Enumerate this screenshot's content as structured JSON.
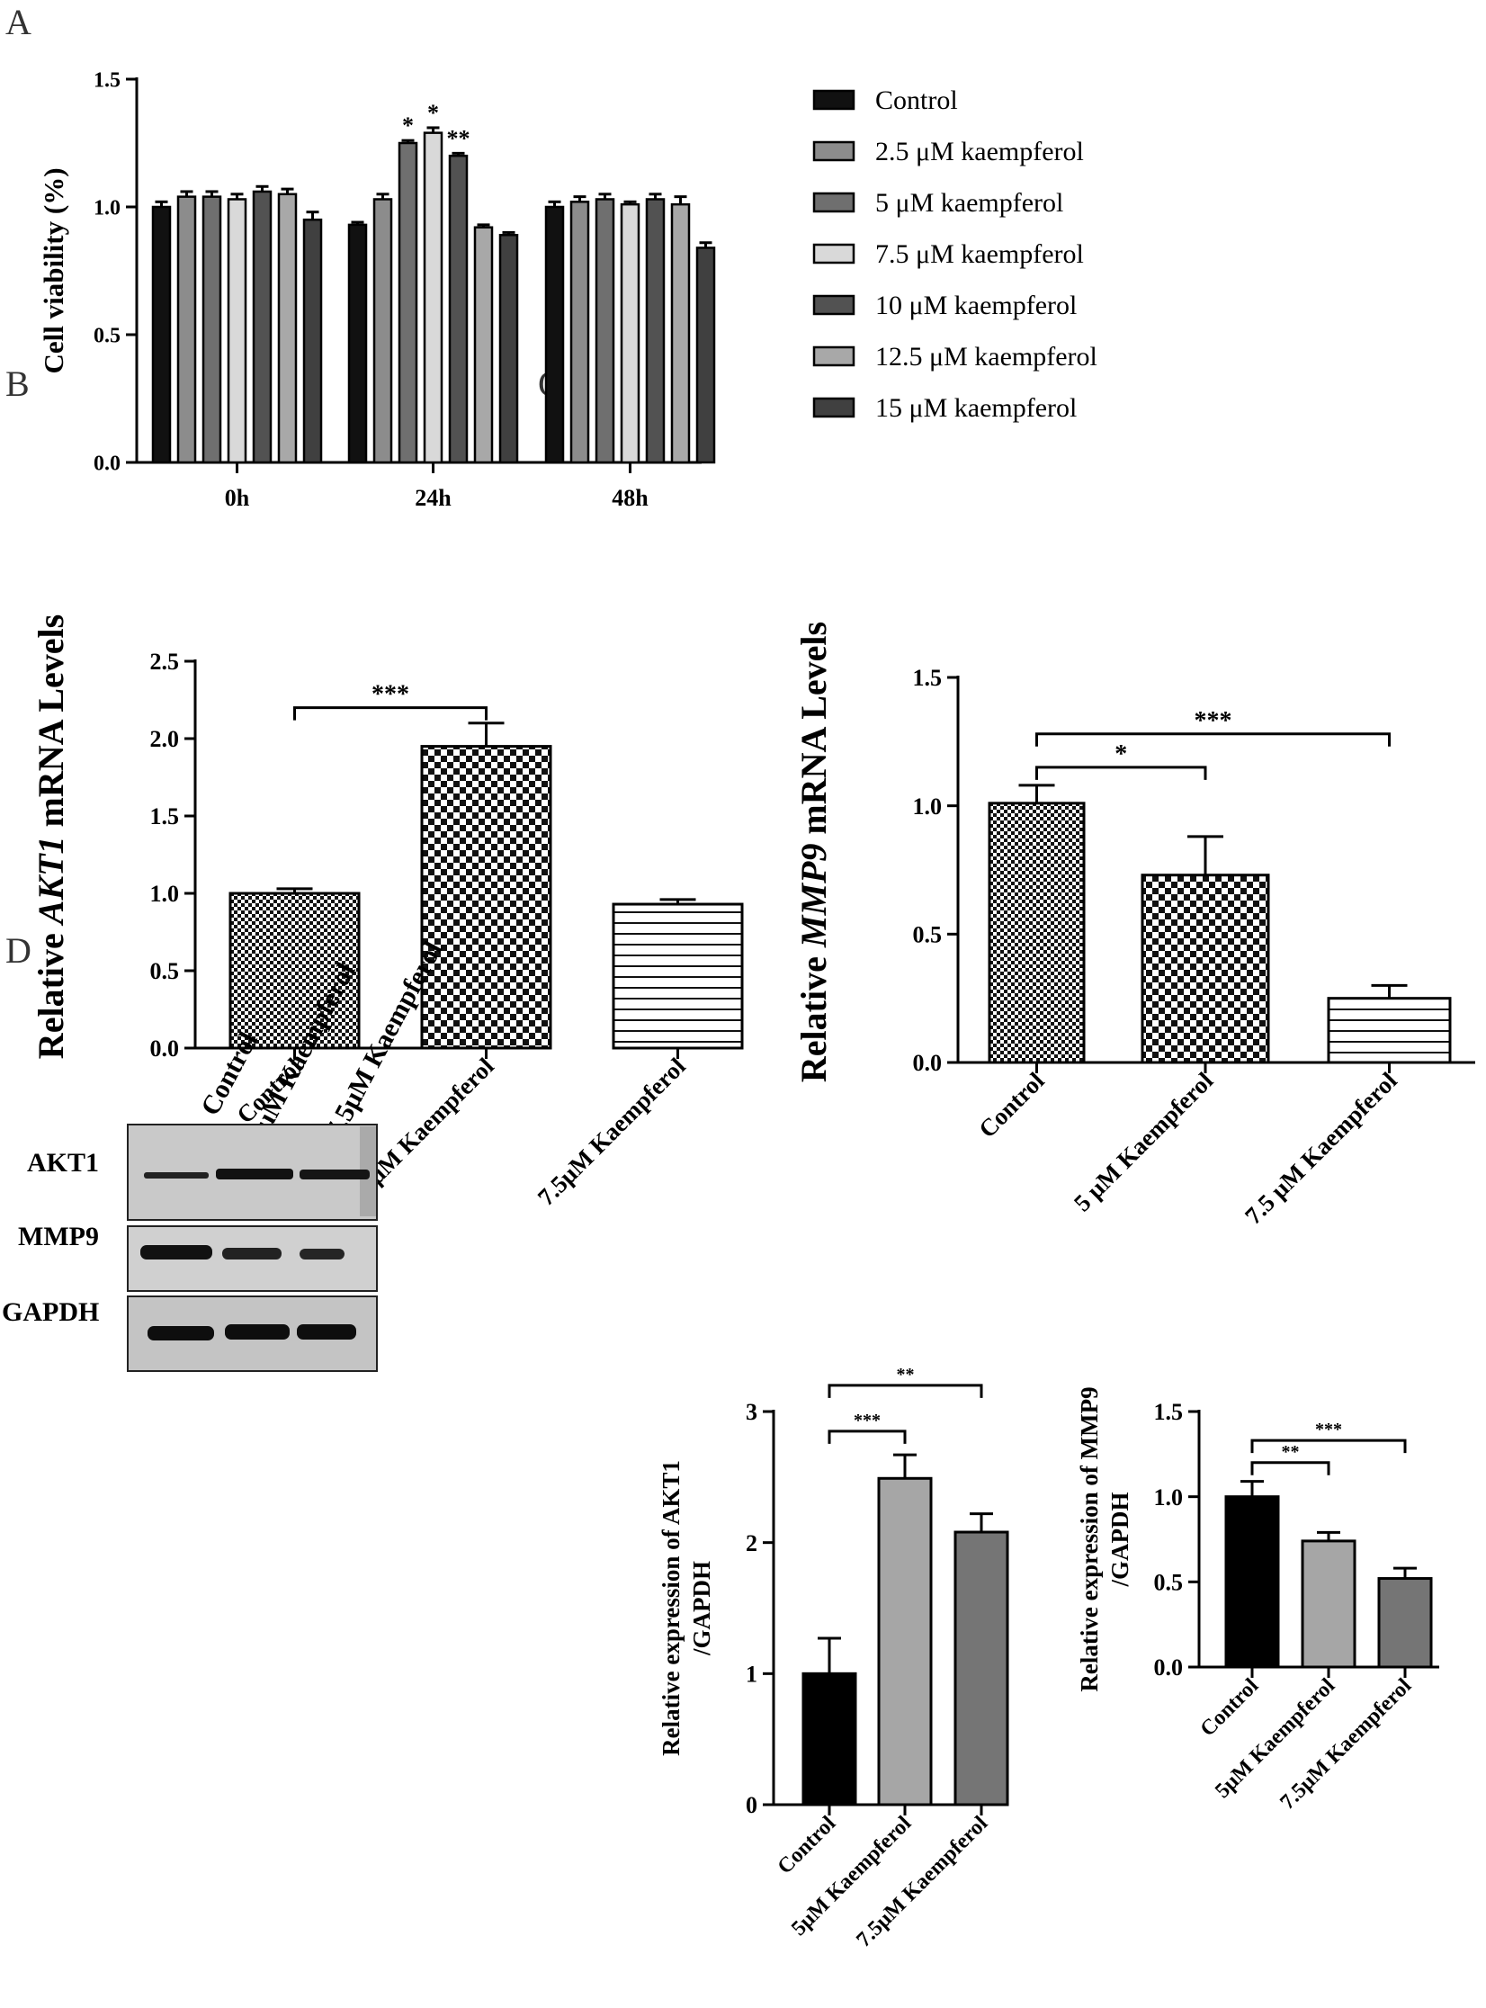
{
  "panel_labels": {
    "a": "A",
    "b": "B",
    "c": "C",
    "d": "D"
  },
  "chart_data": [
    {
      "id": "A",
      "type": "bar",
      "ylabel": "Cell viability (%)",
      "xlabel": "",
      "ylim": [
        0,
        1.5
      ],
      "yticks": [
        "0.0",
        "0.5",
        "1.0",
        "1.5"
      ],
      "categories": [
        "0h",
        "24h",
        "48h"
      ],
      "legend_position": "right",
      "series": [
        {
          "name": "Control",
          "color": "#111111",
          "values": [
            1.0,
            0.93,
            1.0
          ],
          "errors": [
            0.02,
            0.01,
            0.02
          ],
          "sig": [
            "",
            "",
            ""
          ]
        },
        {
          "name": "2.5 μM kaempferol",
          "color": "#8c8c8c",
          "values": [
            1.04,
            1.03,
            1.02
          ],
          "errors": [
            0.02,
            0.02,
            0.02
          ],
          "sig": [
            "",
            "",
            ""
          ]
        },
        {
          "name": "5 μM kaempferol",
          "color": "#6f6f6f",
          "values": [
            1.04,
            1.25,
            1.03
          ],
          "errors": [
            0.02,
            0.01,
            0.02
          ],
          "sig": [
            "",
            "*",
            ""
          ]
        },
        {
          "name": "7.5 μM kaempferol",
          "color": "#d9d9d9",
          "values": [
            1.03,
            1.29,
            1.01
          ],
          "errors": [
            0.02,
            0.02,
            0.01
          ],
          "sig": [
            "",
            "*",
            ""
          ]
        },
        {
          "name": "10 μM kaempferol",
          "color": "#525252",
          "values": [
            1.06,
            1.2,
            1.03
          ],
          "errors": [
            0.02,
            0.01,
            0.02
          ],
          "sig": [
            "",
            "**",
            ""
          ]
        },
        {
          "name": "12.5 μM kaempferol",
          "color": "#a8a8a8",
          "values": [
            1.05,
            0.92,
            1.01
          ],
          "errors": [
            0.02,
            0.01,
            0.03
          ],
          "sig": [
            "",
            "",
            ""
          ]
        },
        {
          "name": "15 μM kaempferol",
          "color": "#404040",
          "values": [
            0.95,
            0.89,
            0.84
          ],
          "errors": [
            0.03,
            0.01,
            0.02
          ],
          "sig": [
            "",
            "",
            ""
          ]
        }
      ]
    },
    {
      "id": "B",
      "type": "bar",
      "ylabel_pre": "Relative ",
      "ylabel_gene": "AKT1",
      "ylabel_post": " mRNA Levels",
      "ylim": [
        0,
        2.5
      ],
      "yticks": [
        "0.0",
        "0.5",
        "1.0",
        "1.5",
        "2.0",
        "2.5"
      ],
      "categories": [
        "Control",
        "5μM Kaempferol",
        "7.5μM Kaempferol"
      ],
      "values": [
        1.0,
        1.95,
        0.93
      ],
      "errors": [
        0.03,
        0.15,
        0.03
      ],
      "patterns": [
        "fine-check",
        "coarse-check",
        "hstripe"
      ],
      "significance": [
        {
          "from": 0,
          "to": 1,
          "level": 2.2,
          "label": "***"
        }
      ]
    },
    {
      "id": "C",
      "type": "bar",
      "ylabel_pre": "Relative  ",
      "ylabel_gene": "MMP9",
      "ylabel_post": " mRNA Levels",
      "ylim": [
        0,
        1.5
      ],
      "yticks": [
        "0.0",
        "0.5",
        "1.0",
        "1.5"
      ],
      "categories": [
        "Control",
        "5 μM Kaempferol",
        "7.5 μM Kaempferol"
      ],
      "values": [
        1.01,
        0.73,
        0.25
      ],
      "errors": [
        0.07,
        0.15,
        0.05
      ],
      "patterns": [
        "fine-check",
        "coarse-check",
        "hstripe"
      ],
      "significance": [
        {
          "from": 0,
          "to": 1,
          "level": 1.15,
          "label": "*"
        },
        {
          "from": 0,
          "to": 2,
          "level": 1.28,
          "label": "***"
        }
      ]
    },
    {
      "id": "D1",
      "type": "bar",
      "ylabel_line1": "Relative expression of AKT1",
      "ylabel_line2": "/GAPDH",
      "ylim": [
        0,
        3
      ],
      "yticks": [
        "0",
        "1",
        "2",
        "3"
      ],
      "categories": [
        "Control",
        "5μM Kaempferol",
        "7.5μM Kaempferol"
      ],
      "values": [
        1.0,
        2.49,
        2.08
      ],
      "errors": [
        0.27,
        0.18,
        0.14
      ],
      "colors": [
        "#000000",
        "#a6a6a6",
        "#757575"
      ],
      "significance": [
        {
          "from": 0,
          "to": 1,
          "level": 2.85,
          "label": "***"
        },
        {
          "from": 0,
          "to": 2,
          "level": 3.2,
          "label": "**"
        }
      ]
    },
    {
      "id": "D2",
      "type": "bar",
      "ylabel_line1": "Relative expression of MMP9",
      "ylabel_line2": "/GAPDH",
      "ylim": [
        0,
        1.5
      ],
      "yticks": [
        "0.0",
        "0.5",
        "1.0",
        "1.5"
      ],
      "categories": [
        "Control",
        "5μM Kaempferol",
        "7.5μM Kaempferol"
      ],
      "values": [
        1.0,
        0.74,
        0.52
      ],
      "errors": [
        0.09,
        0.05,
        0.06
      ],
      "colors": [
        "#000000",
        "#a6a6a6",
        "#757575"
      ],
      "significance": [
        {
          "from": 0,
          "to": 1,
          "level": 1.2,
          "label": "**"
        },
        {
          "from": 0,
          "to": 2,
          "level": 1.33,
          "label": "***"
        }
      ]
    }
  ],
  "western_blot": {
    "lanes": [
      "Control",
      "5μM Kaempferol",
      "7.5μM Kaempferol"
    ],
    "rows": [
      "AKT1",
      "MMP9",
      "GAPDH"
    ]
  }
}
